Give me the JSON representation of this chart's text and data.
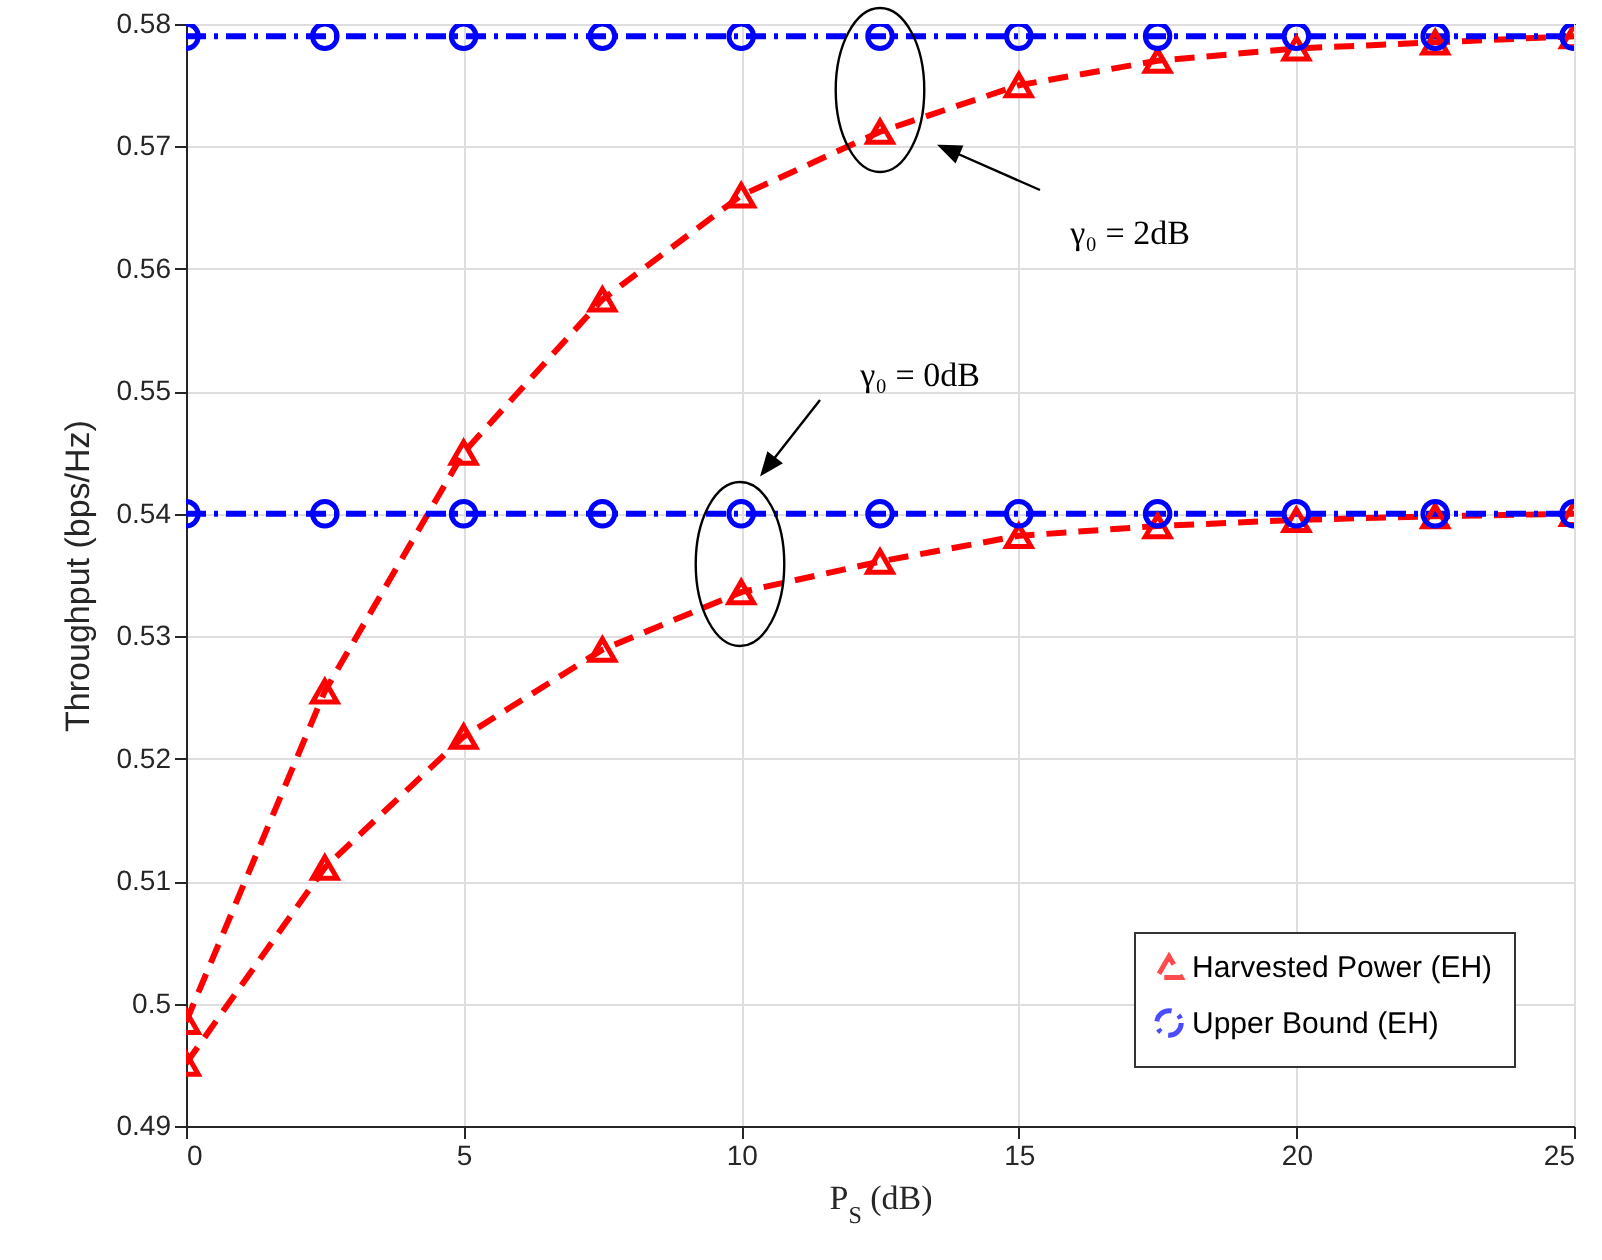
{
  "chart_data": {
    "type": "line",
    "xlabel": "P$_{S}$ (dB)",
    "ylabel": "Throughput (bps/Hz)",
    "x": [
      0,
      2.5,
      5,
      7.5,
      10,
      12.5,
      15,
      17.5,
      20,
      22.5,
      25
    ],
    "series": [
      {
        "name": "Harvested Power (EH)",
        "color": "#ff0000",
        "marker": "triangle",
        "line_style": "dashed",
        "values": [
          0.4985,
          0.5255,
          0.545,
          0.5575,
          0.566,
          0.5712,
          0.575,
          0.577,
          0.578,
          0.5785,
          0.579
        ]
      },
      {
        "name": "Upper Bound (EH)",
        "color": "#0000ff",
        "marker": "circle",
        "line_style": "dashdot",
        "values": [
          0.579,
          0.579,
          0.579,
          0.579,
          0.579,
          0.579,
          0.579,
          0.579,
          0.579,
          0.579,
          0.579
        ]
      },
      {
        "color": "#ff0000",
        "marker": "triangle",
        "line_style": "dashed",
        "values": [
          0.4951,
          0.5111,
          0.5218,
          0.5289,
          0.5336,
          0.5361,
          0.5382,
          0.539,
          0.5395,
          0.5398,
          0.54
        ]
      },
      {
        "color": "#0000ff",
        "marker": "circle",
        "line_style": "dashdot",
        "values": [
          0.54,
          0.54,
          0.54,
          0.54,
          0.54,
          0.54,
          0.54,
          0.54,
          0.54,
          0.54,
          0.54
        ]
      }
    ],
    "annotations": [
      "γ₀ = 2dB",
      "γ₀ = 0dB"
    ],
    "xlim": [
      0,
      25
    ],
    "xticks": [
      0,
      5,
      10,
      15,
      20,
      25
    ],
    "ylim": [
      0.49,
      0.58
    ],
    "yticks": [
      0.49,
      0.5,
      0.51,
      0.52,
      0.53,
      0.54,
      0.55,
      0.56,
      0.57,
      0.58
    ],
    "grid": true,
    "legend": "bottom right"
  }
}
